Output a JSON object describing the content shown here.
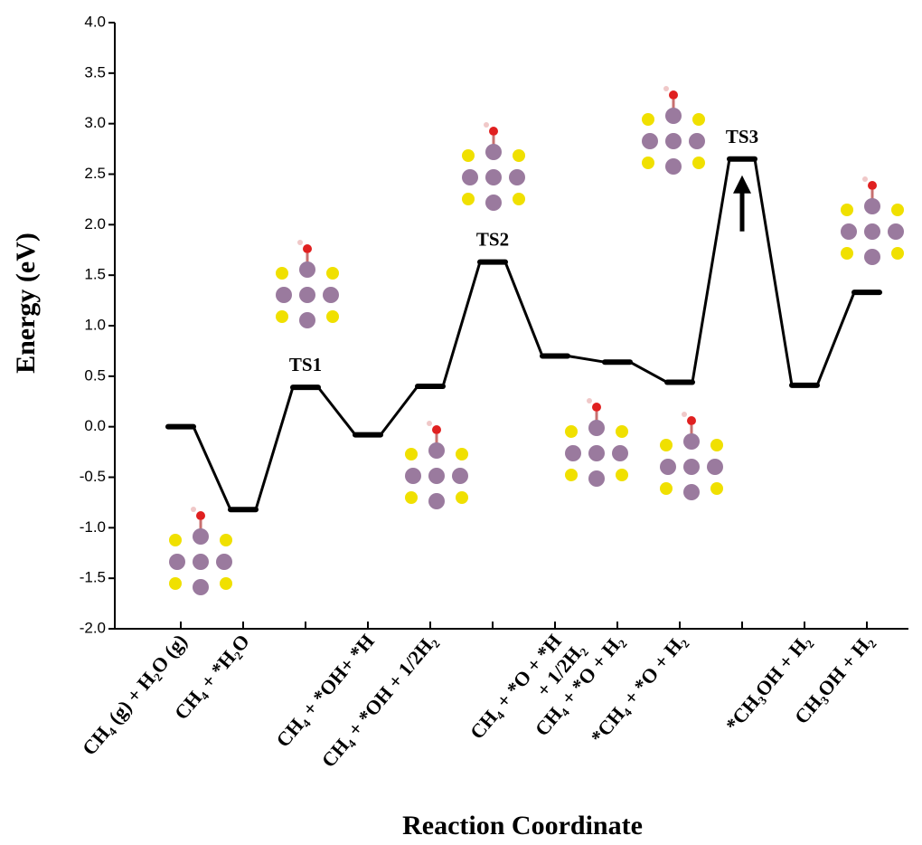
{
  "chart_data": {
    "type": "energy-profile",
    "y_label": "Energy (eV)",
    "x_label": "Reaction Coordinate",
    "categories": [
      "CH₄ (g) + H₂O (g)",
      "CH₄ + *H₂O",
      null,
      "CH₄ + *OH+ *H",
      "CH₄ + *OH + 1/2H₂",
      null,
      "CH₄ + *O + *H\n+ 1/2H₂",
      "CH₄ + *O + H₂",
      "*CH₄ + *O + H₂",
      null,
      "*CH₃OH + H₂",
      "CH₃OH + H₂"
    ],
    "values": [
      0.0,
      -0.82,
      0.39,
      -0.08,
      0.4,
      1.63,
      0.7,
      0.64,
      0.44,
      2.65,
      0.41,
      1.33
    ],
    "annotations": [
      {
        "text": "TS1",
        "index": 2
      },
      {
        "text": "TS2",
        "index": 5
      },
      {
        "text": "TS3",
        "index": 9
      }
    ],
    "color": "#000000",
    "ylim": [
      -2,
      4
    ],
    "yticks": [
      {
        "value": -2,
        "label": "-2.0"
      },
      -1.5,
      {
        "value": -1,
        "label": "-1.0"
      },
      -0.5,
      {
        "value": 0,
        "label": "0.0"
      },
      0.5,
      {
        "value": 1,
        "label": "1.0"
      },
      1.5,
      {
        "value": 2,
        "label": "2.0"
      },
      2.5,
      {
        "value": 3,
        "label": "3.0"
      },
      3.5,
      {
        "value": 4,
        "label": "4.0"
      }
    ]
  }
}
